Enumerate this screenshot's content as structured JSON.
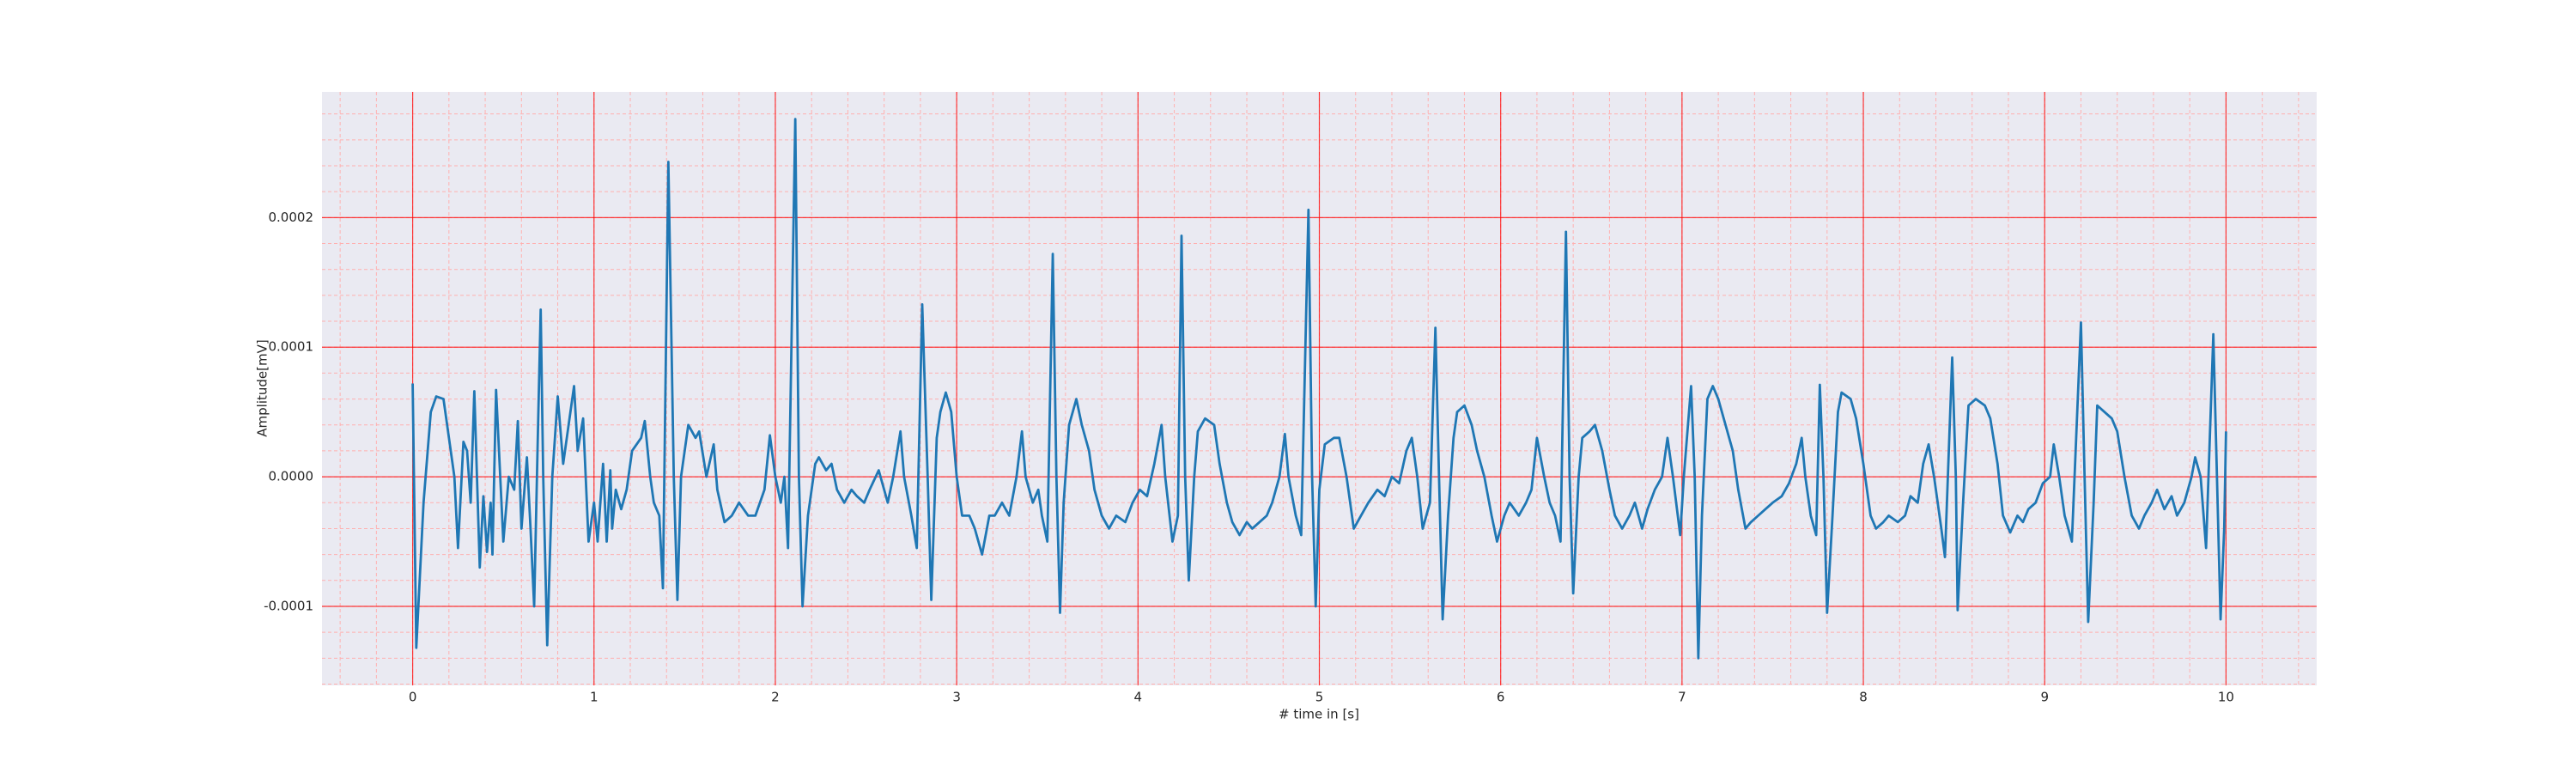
{
  "chart_data": {
    "type": "line",
    "xlabel": "# time in [s]",
    "ylabel": "Amplitude[mV]",
    "color": "#1f77b4",
    "background": "#eaeaf2",
    "grid": true,
    "grid_color": "#ff0000",
    "minor_grid": {
      "x_step": 0.2,
      "y_step": 2e-05,
      "color": "#ffb0b0"
    },
    "xlim": [
      -0.5,
      10.5
    ],
    "ylim": [
      -0.000161,
      0.000297
    ],
    "xticks": [
      0,
      1,
      2,
      3,
      4,
      5,
      6,
      7,
      8,
      9,
      10
    ],
    "yticks": [
      {
        "value": -0.0001,
        "label": "-0.0001"
      },
      {
        "value": 0,
        "label": "0.0000"
      },
      {
        "value": 0.0001,
        "label": "0.0001"
      },
      {
        "value": 0.0002,
        "label": "0.0002"
      }
    ],
    "x": [
      0,
      0.02,
      0.06,
      0.1,
      0.13,
      0.17,
      0.19,
      0.23,
      0.25,
      0.28,
      0.3,
      0.32,
      0.34,
      0.37,
      0.39,
      0.41,
      0.43,
      0.44,
      0.46,
      0.5,
      0.53,
      0.56,
      0.58,
      0.6,
      0.63,
      0.65,
      0.67,
      0.69,
      0.706,
      0.72,
      0.742,
      0.77,
      0.8,
      0.83,
      0.86,
      0.89,
      0.91,
      0.94,
      0.97,
      1,
      1.02,
      1.05,
      1.07,
      1.09,
      1.1,
      1.12,
      1.15,
      1.18,
      1.21,
      1.26,
      1.28,
      1.31,
      1.33,
      1.36,
      1.38,
      1.41,
      1.44,
      1.46,
      1.48,
      1.52,
      1.56,
      1.58,
      1.62,
      1.66,
      1.68,
      1.72,
      1.76,
      1.8,
      1.85,
      1.89,
      1.94,
      1.97,
      2,
      2.03,
      2.05,
      2.07,
      2.11,
      2.13,
      2.15,
      2.18,
      2.22,
      2.24,
      2.28,
      2.31,
      2.34,
      2.38,
      2.42,
      2.45,
      2.49,
      2.52,
      2.57,
      2.62,
      2.65,
      2.69,
      2.71,
      2.75,
      2.78,
      2.81,
      2.84,
      2.86,
      2.89,
      2.91,
      2.94,
      2.97,
      3,
      3.03,
      3.07,
      3.1,
      3.14,
      3.18,
      3.21,
      3.25,
      3.29,
      3.33,
      3.36,
      3.38,
      3.42,
      3.45,
      3.47,
      3.5,
      3.53,
      3.55,
      3.57,
      3.59,
      3.62,
      3.66,
      3.69,
      3.73,
      3.76,
      3.8,
      3.84,
      3.88,
      3.93,
      3.97,
      4.01,
      4.05,
      4.09,
      4.13,
      4.15,
      4.19,
      4.22,
      4.24,
      4.26,
      4.28,
      4.31,
      4.33,
      4.37,
      4.42,
      4.45,
      4.49,
      4.52,
      4.56,
      4.6,
      4.63,
      4.67,
      4.71,
      4.74,
      4.78,
      4.81,
      4.83,
      4.87,
      4.9,
      4.94,
      4.96,
      4.98,
      5,
      5.03,
      5.08,
      5.11,
      5.15,
      5.19,
      5.23,
      5.27,
      5.32,
      5.36,
      5.4,
      5.44,
      5.48,
      5.51,
      5.54,
      5.57,
      5.61,
      5.64,
      5.66,
      5.68,
      5.71,
      5.74,
      5.76,
      5.8,
      5.84,
      5.87,
      5.91,
      5.95,
      5.98,
      6.02,
      6.05,
      6.1,
      6.14,
      6.17,
      6.2,
      6.24,
      6.27,
      6.3,
      6.33,
      6.36,
      6.38,
      6.4,
      6.43,
      6.45,
      6.49,
      6.52,
      6.56,
      6.6,
      6.63,
      6.67,
      6.71,
      6.74,
      6.78,
      6.81,
      6.85,
      6.89,
      6.92,
      6.95,
      6.99,
      7.01,
      7.05,
      7.07,
      7.09,
      7.11,
      7.14,
      7.17,
      7.2,
      7.24,
      7.28,
      7.31,
      7.35,
      7.38,
      7.42,
      7.46,
      7.5,
      7.55,
      7.59,
      7.63,
      7.66,
      7.68,
      7.71,
      7.74,
      7.76,
      7.78,
      7.8,
      7.83,
      7.86,
      7.88,
      7.93,
      7.96,
      8,
      8.04,
      8.07,
      8.11,
      8.14,
      8.19,
      8.23,
      8.26,
      8.3,
      8.33,
      8.36,
      8.39,
      8.43,
      8.45,
      8.49,
      8.51,
      8.52,
      8.55,
      8.58,
      8.62,
      8.67,
      8.7,
      8.74,
      8.77,
      8.81,
      8.85,
      8.88,
      8.91,
      8.95,
      8.99,
      9.03,
      9.05,
      9.08,
      9.11,
      9.15,
      9.2,
      9.22,
      9.24,
      9.27,
      9.29,
      9.33,
      9.37,
      9.4,
      9.44,
      9.48,
      9.52,
      9.55,
      9.59,
      9.62,
      9.66,
      9.7,
      9.73,
      9.77,
      9.81,
      9.83,
      9.86,
      9.89,
      9.93,
      9.95,
      9.97,
      9.99,
      10
    ],
    "values": [
      7.2e-05,
      -0.000132,
      -2e-05,
      5e-05,
      6.2e-05,
      6e-05,
      4e-05,
      0,
      -5.5e-05,
      2.7e-05,
      2e-05,
      -2e-05,
      6.6e-05,
      -7e-05,
      -1.5e-05,
      -5.8e-05,
      -2e-05,
      -6e-05,
      6.7e-05,
      -5e-05,
      0,
      -1e-05,
      4.3e-05,
      -4e-05,
      1.5e-05,
      -4e-05,
      -0.0001,
      3e-05,
      0.000129,
      0,
      -0.00013,
      0,
      6.2e-05,
      1e-05,
      4e-05,
      7e-05,
      2e-05,
      4.5e-05,
      -5e-05,
      -2e-05,
      -5e-05,
      1e-05,
      -5e-05,
      5e-06,
      -4e-05,
      -1e-05,
      -2.5e-05,
      -1e-05,
      2e-05,
      3e-05,
      4.3e-05,
      0,
      -2e-05,
      -3e-05,
      -8.6e-05,
      0.000243,
      0,
      -9.5e-05,
      0,
      4e-05,
      3e-05,
      3.5e-05,
      0,
      2.5e-05,
      -1e-05,
      -3.5e-05,
      -3e-05,
      -2e-05,
      -3e-05,
      -3e-05,
      -1e-05,
      3.2e-05,
      0,
      -2e-05,
      0,
      -5.5e-05,
      0.000276,
      0,
      -0.0001,
      -3e-05,
      1e-05,
      1.5e-05,
      5e-06,
      1e-05,
      -1e-05,
      -2e-05,
      -1e-05,
      -1.5e-05,
      -2e-05,
      -1e-05,
      5e-06,
      -2e-05,
      0,
      3.5e-05,
      0,
      -3e-05,
      -5.5e-05,
      0.000133,
      0,
      -9.5e-05,
      3e-05,
      5e-05,
      6.5e-05,
      5e-05,
      0,
      -3e-05,
      -3e-05,
      -4e-05,
      -6e-05,
      -3e-05,
      -3e-05,
      -2e-05,
      -3e-05,
      0,
      3.5e-05,
      0,
      -2e-05,
      -1e-05,
      -3e-05,
      -5e-05,
      0.000172,
      0,
      -0.000105,
      -2e-05,
      4e-05,
      6e-05,
      4e-05,
      2e-05,
      -1e-05,
      -3e-05,
      -4e-05,
      -3e-05,
      -3.5e-05,
      -2e-05,
      -1e-05,
      -1.5e-05,
      1e-05,
      4e-05,
      0,
      -5e-05,
      -3e-05,
      0.000186,
      0,
      -8e-05,
      0,
      3.5e-05,
      4.5e-05,
      4e-05,
      1e-05,
      -2e-05,
      -3.5e-05,
      -4.5e-05,
      -3.5e-05,
      -4e-05,
      -3.5e-05,
      -3e-05,
      -2e-05,
      0,
      3.3e-05,
      0,
      -3e-05,
      -4.5e-05,
      0.000206,
      0,
      -0.0001,
      -1e-05,
      2.5e-05,
      3e-05,
      3e-05,
      0,
      -4e-05,
      -3e-05,
      -2e-05,
      -1e-05,
      -1.5e-05,
      0,
      -5e-06,
      2e-05,
      3e-05,
      0,
      -4e-05,
      -2e-05,
      0.000115,
      0,
      -0.00011,
      -3e-05,
      3e-05,
      5e-05,
      5.5e-05,
      4e-05,
      2e-05,
      0,
      -3e-05,
      -5e-05,
      -3e-05,
      -2e-05,
      -3e-05,
      -2e-05,
      -1e-05,
      3e-05,
      0,
      -2e-05,
      -3e-05,
      -5e-05,
      0.000189,
      0,
      -9e-05,
      0,
      3e-05,
      3.5e-05,
      4e-05,
      2e-05,
      -1e-05,
      -3e-05,
      -4e-05,
      -3e-05,
      -2e-05,
      -4e-05,
      -2.5e-05,
      -1e-05,
      0,
      3e-05,
      0,
      -4.5e-05,
      0,
      7e-05,
      0,
      -0.00014,
      -3e-05,
      6e-05,
      7e-05,
      6e-05,
      4e-05,
      2e-05,
      -1e-05,
      -4e-05,
      -3.5e-05,
      -3e-05,
      -2.5e-05,
      -2e-05,
      -1.5e-05,
      -5e-06,
      1e-05,
      3e-05,
      0,
      -3e-05,
      -4.5e-05,
      7.1e-05,
      0,
      -0.000105,
      -3e-05,
      5e-05,
      6.5e-05,
      6e-05,
      4.5e-05,
      1e-05,
      -3e-05,
      -4e-05,
      -3.5e-05,
      -3e-05,
      -3.5e-05,
      -3e-05,
      -1.5e-05,
      -2e-05,
      1e-05,
      2.5e-05,
      0,
      -4e-05,
      -6.2e-05,
      9.2e-05,
      0,
      -0.000103,
      -2e-05,
      5.5e-05,
      6e-05,
      5.5e-05,
      4.5e-05,
      1e-05,
      -3e-05,
      -4.3e-05,
      -3e-05,
      -3.5e-05,
      -2.5e-05,
      -2e-05,
      -5e-06,
      0,
      2.5e-05,
      0,
      -3e-05,
      -5e-05,
      0.000119,
      0,
      -0.000112,
      -2e-05,
      5.5e-05,
      5e-05,
      4.5e-05,
      3.5e-05,
      0,
      -3e-05,
      -4e-05,
      -3e-05,
      -2e-05,
      -1e-05,
      -2.5e-05,
      -1.5e-05,
      -3e-05,
      -2e-05,
      0,
      1.5e-05,
      0,
      -5.5e-05,
      0.00011,
      0,
      -0.00011,
      -4e-05,
      3.5e-05
    ]
  }
}
